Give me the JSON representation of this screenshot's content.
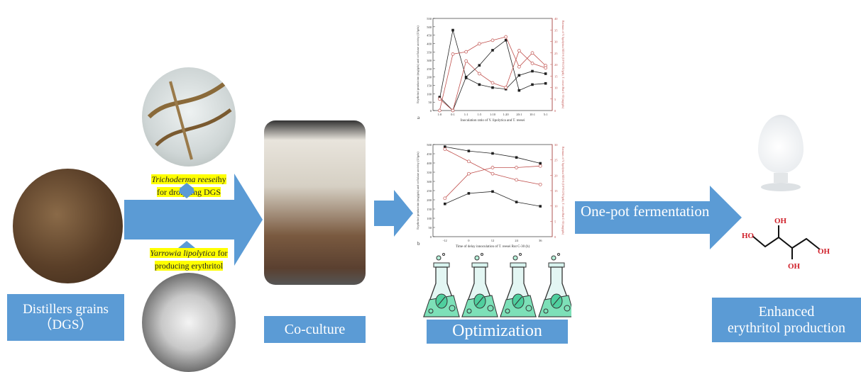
{
  "stages": {
    "dgs": "Distillers grains\n（DGS）",
    "dgs_line1": "Distillers grains",
    "dgs_line2": "（DGS）",
    "coculture": "Co-culture",
    "optimization": "Optimization",
    "one_pot": "One-pot fermentation",
    "enhanced_line1": "Enhanced",
    "enhanced_line2": "erythritol production"
  },
  "organisms": {
    "trichoderma_species": "Trichoderma reesei",
    "trichoderma_role": "hy for drolyzing DGS",
    "trichoderma_role_a": "hy",
    "trichoderma_role_b": "for drolyzing DGS",
    "yarrowia_species": "Yarrowia lipolytica",
    "yarrowia_role_a": "for",
    "yarrowia_role_b": "producing erythritol"
  },
  "molecule": {
    "labels": [
      "OH",
      "HO",
      "OH",
      "OH"
    ]
  },
  "colors": {
    "accent_blue": "#5b9bd5",
    "series_black": "#222222",
    "series_red": "#c0504d",
    "highlight": "#ffff00",
    "oh_red": "#d0202a"
  },
  "chart_data": [
    {
      "type": "line",
      "panel_label": "a",
      "xlabel": "Inoculation ratio of Y. lipolytica and T. reesei",
      "ylabel": "Erythritol production (mg/gds) and cellulase activity (U/gds)",
      "y2label": "Biomass of Y. lipolytica M53-S (10^8 CFU/gds), T. reesei Rut C-30 (mg/gds)",
      "categories": [
        "1:0",
        "0:1",
        "1:1",
        "1:5",
        "1:10",
        "1:20",
        "20:1",
        "10:1",
        "5:1"
      ],
      "ylim": [
        0,
        550
      ],
      "yticks": [
        0,
        50,
        100,
        150,
        200,
        250,
        300,
        350,
        400,
        450,
        500,
        550
      ],
      "y2lim": [
        0,
        40
      ],
      "y2ticks": [
        0,
        5,
        10,
        15,
        20,
        25,
        30,
        35,
        40
      ],
      "series": [
        {
          "axis": "left",
          "color": "#222222",
          "marker": "filled-square",
          "values": [
            80,
            0,
            200,
            270,
            360,
            420,
            120,
            155,
            162
          ]
        },
        {
          "axis": "left",
          "color": "#222222",
          "marker": "filled-square",
          "values": [
            70,
            480,
            195,
            155,
            137,
            128,
            210,
            235,
            220
          ]
        },
        {
          "axis": "right",
          "color": "#c0504d",
          "marker": "open-circle",
          "values": [
            0,
            24.5,
            25.5,
            29,
            30.5,
            32,
            19,
            25,
            19.5
          ]
        },
        {
          "axis": "right",
          "color": "#c0504d",
          "marker": "open-circle",
          "values": [
            5,
            0,
            21.5,
            16,
            12,
            10,
            26,
            20.5,
            18.5
          ]
        }
      ]
    },
    {
      "type": "line",
      "panel_label": "b",
      "xlabel": "Time of delay innoculation of T. reesei Rut C-30 (h)",
      "ylabel": "Erythritol production (mg/gds) and cellulase activity (U/gds)",
      "y2label": "Biomass of Y. lipolytica M53-S (10^8 CFU/gds), T. reesei Rut C-30 (mg/gds)",
      "categories": [
        "-12",
        "0",
        "12",
        "24",
        "36"
      ],
      "ylim": [
        0,
        500
      ],
      "yticks": [
        0,
        50,
        100,
        150,
        200,
        250,
        300,
        350,
        400,
        450,
        500
      ],
      "y2lim": [
        0,
        30
      ],
      "y2ticks": [
        0,
        5,
        10,
        15,
        20,
        25,
        30
      ],
      "series": [
        {
          "axis": "left",
          "color": "#222222",
          "marker": "filled-square",
          "values": [
            488,
            465,
            452,
            430,
            398
          ]
        },
        {
          "axis": "left",
          "color": "#222222",
          "marker": "filled-square",
          "values": [
            178,
            235,
            245,
            188,
            165
          ]
        },
        {
          "axis": "right",
          "color": "#c0504d",
          "marker": "open-circle",
          "values": [
            28.5,
            24.5,
            20.5,
            18.5,
            17
          ]
        },
        {
          "axis": "right",
          "color": "#c0504d",
          "marker": "open-circle",
          "values": [
            12.5,
            20.5,
            22.5,
            22.5,
            23
          ]
        }
      ]
    }
  ]
}
